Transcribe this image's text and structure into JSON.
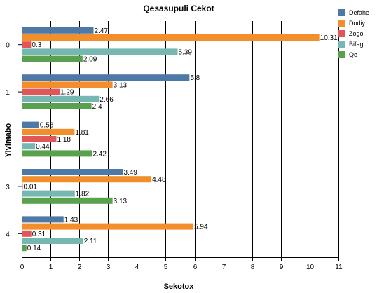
{
  "chart_data": {
    "type": "bar",
    "orientation": "horizontal",
    "title": "Qesasupuli Cekot",
    "xlabel": "Sekotox",
    "ylabel": "Yivimabo",
    "categories": [
      "0",
      "1",
      "2",
      "3",
      "4"
    ],
    "xlim": [
      0,
      11
    ],
    "xticks": [
      "0",
      "1",
      "2",
      "3",
      "4",
      "5",
      "6",
      "7",
      "8",
      "9",
      "10",
      "11"
    ],
    "grid": "vertical",
    "legend_position": "top-right",
    "series": [
      {
        "name": "Defahe",
        "color": "#4e79a7",
        "values": [
          2.47,
          5.8,
          0.58,
          3.49,
          1.43
        ],
        "labels": [
          "2.47",
          "5.8",
          "0.58",
          "3.49",
          "1.43"
        ]
      },
      {
        "name": "Dodiy",
        "color": "#f28e2b",
        "values": [
          10.31,
          3.13,
          1.81,
          4.48,
          5.94
        ],
        "labels": [
          "10.31",
          "3.13",
          "1.81",
          "4.48",
          "5.94"
        ]
      },
      {
        "name": "Zogo",
        "color": "#e15759",
        "values": [
          0.3,
          1.29,
          1.18,
          0.01,
          0.31
        ],
        "labels": [
          "0.3",
          "1.29",
          "1.18",
          "0.01",
          "0.31"
        ]
      },
      {
        "name": "Bifag",
        "color": "#76b7b2",
        "values": [
          5.39,
          2.66,
          0.44,
          1.82,
          2.11
        ],
        "labels": [
          "5.39",
          "2.66",
          "0.44",
          "1.82",
          "2.11"
        ]
      },
      {
        "name": "Qe",
        "color": "#59a14f",
        "values": [
          2.09,
          2.4,
          2.42,
          3.13,
          0.14
        ],
        "labels": [
          "2.09",
          "2.4",
          "2.42",
          "3.13",
          "0.14"
        ]
      }
    ]
  }
}
